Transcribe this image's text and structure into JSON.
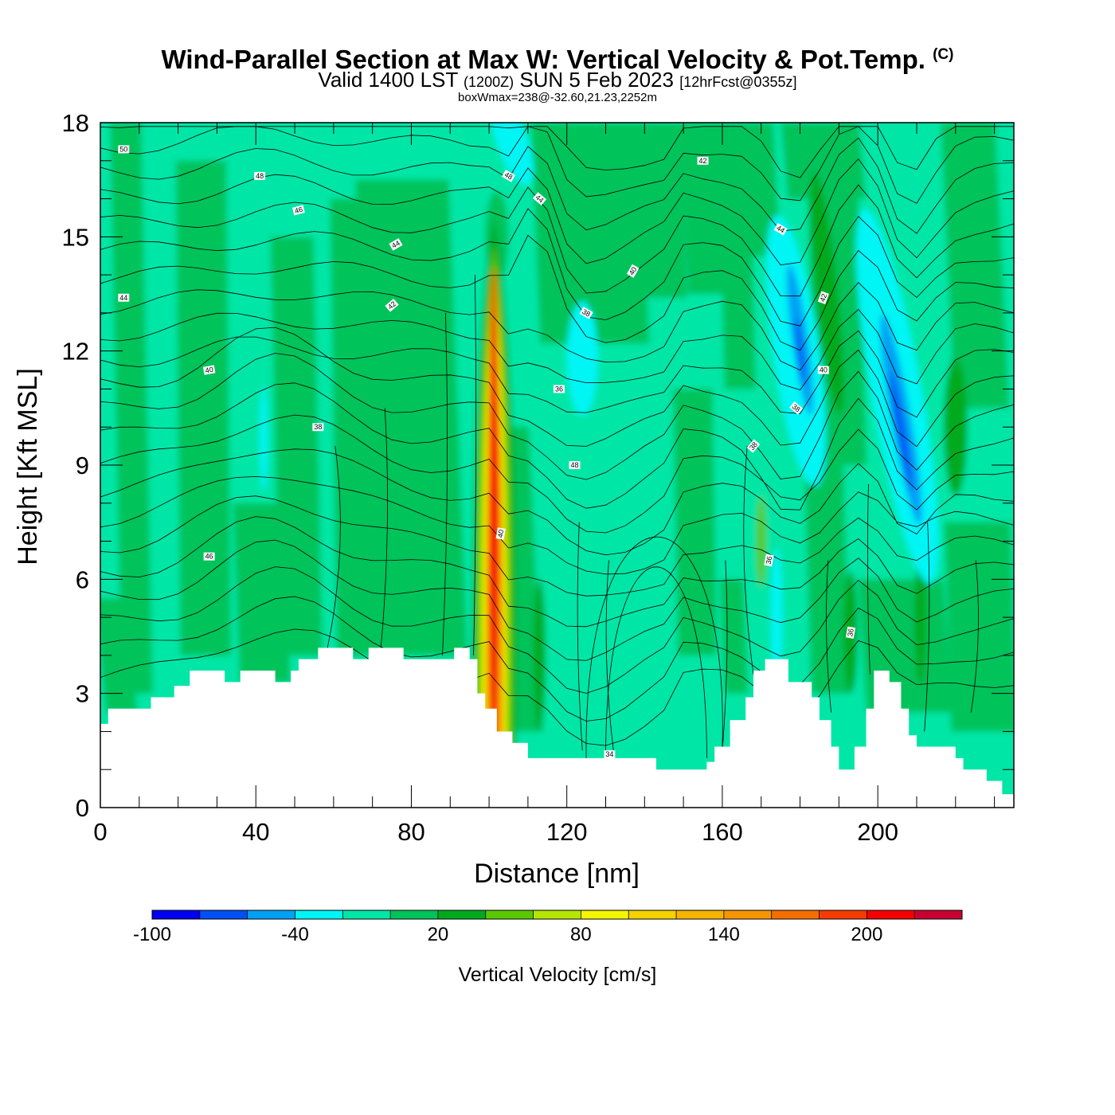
{
  "title": {
    "main": "Wind-Parallel Section at Max W: Vertical Velocity & Pot.Temp.",
    "copyright": "(C)",
    "valid_prefix": "Valid 1400 LST",
    "valid_utc": "(1200Z)",
    "valid_date": "SUN 5 Feb 2023",
    "forecast": "[12hrFcst@0355z]",
    "boxwmax": "boxWmax=238@-32.60,21.23,2252m"
  },
  "chart_data": {
    "type": "heatmap",
    "xlabel": "Distance [nm]",
    "ylabel": "Height [Kft MSL]",
    "xlim": [
      0,
      235
    ],
    "ylim": [
      0,
      18
    ],
    "x_ticks": [
      "0",
      "40",
      "80",
      "120",
      "160",
      "200"
    ],
    "y_ticks": [
      "0",
      "3",
      "6",
      "9",
      "12",
      "15",
      "18"
    ],
    "colorbar": {
      "title": "Vertical Velocity [cm/s]",
      "tick_labels": [
        "-100",
        "-40",
        "20",
        "80",
        "140",
        "200"
      ],
      "levels": [
        -100,
        -80,
        -60,
        -40,
        -20,
        0,
        20,
        40,
        60,
        80,
        100,
        120,
        140,
        160,
        180,
        200,
        220,
        240
      ],
      "colors": [
        "#0000f0",
        "#0050f5",
        "#00a0f5",
        "#00f5f5",
        "#00e6a6",
        "#00c35a",
        "#00aa1e",
        "#5ac800",
        "#b4e600",
        "#f5f500",
        "#f5d200",
        "#f5b400",
        "#f59600",
        "#f56e00",
        "#f53c00",
        "#f50000",
        "#c80032"
      ]
    },
    "vertical_velocity_features": [
      {
        "feature": "updraft core",
        "x_nm": 101,
        "z_kft": [
          2.5,
          14.5
        ],
        "peak_cm_s": 238
      },
      {
        "feature": "downdraft",
        "x_nm": 179,
        "z_kft": [
          9.5,
          13.5
        ],
        "min_cm_s": -80
      },
      {
        "feature": "downdraft",
        "x_nm": 206,
        "z_kft": [
          8,
          11.5
        ],
        "min_cm_s": -100
      }
    ],
    "potential_temperature_labels": [
      "50",
      "48",
      "46",
      "44",
      "44",
      "42",
      "40",
      "38",
      "46",
      "48",
      "44",
      "42",
      "40",
      "38",
      "36",
      "48",
      "44",
      "42",
      "40",
      "38",
      "38",
      "36",
      "40",
      "34",
      "36"
    ],
    "terrain_kft": [
      [
        0,
        2.2
      ],
      [
        2,
        2.6
      ],
      [
        13,
        2.9
      ],
      [
        19,
        3.2
      ],
      [
        23,
        3.6
      ],
      [
        32,
        3.3
      ],
      [
        36,
        3.6
      ],
      [
        45,
        3.3
      ],
      [
        49,
        3.6
      ],
      [
        51,
        3.9
      ],
      [
        56,
        4.2
      ],
      [
        65,
        3.9
      ],
      [
        69,
        4.2
      ],
      [
        78,
        3.9
      ],
      [
        91,
        4.2
      ],
      [
        95,
        3.9
      ],
      [
        97,
        3.0
      ],
      [
        99,
        2.6
      ],
      [
        102,
        2.0
      ],
      [
        106,
        1.7
      ],
      [
        110,
        1.3
      ],
      [
        143,
        1.0
      ],
      [
        156,
        1.2
      ],
      [
        158,
        1.6
      ],
      [
        162,
        2.3
      ],
      [
        166,
        2.9
      ],
      [
        168,
        3.6
      ],
      [
        171,
        3.9
      ],
      [
        177,
        3.3
      ],
      [
        183,
        2.9
      ],
      [
        185,
        2.3
      ],
      [
        188,
        1.6
      ],
      [
        190,
        1.0
      ],
      [
        194,
        1.6
      ],
      [
        197,
        2.6
      ],
      [
        199,
        3.6
      ],
      [
        203,
        3.3
      ],
      [
        206,
        2.6
      ],
      [
        208,
        1.9
      ],
      [
        210,
        1.6
      ],
      [
        220,
        1.3
      ],
      [
        222,
        1.0
      ],
      [
        228,
        0.7
      ],
      [
        232,
        0.35
      ],
      [
        235,
        0.35
      ]
    ]
  }
}
